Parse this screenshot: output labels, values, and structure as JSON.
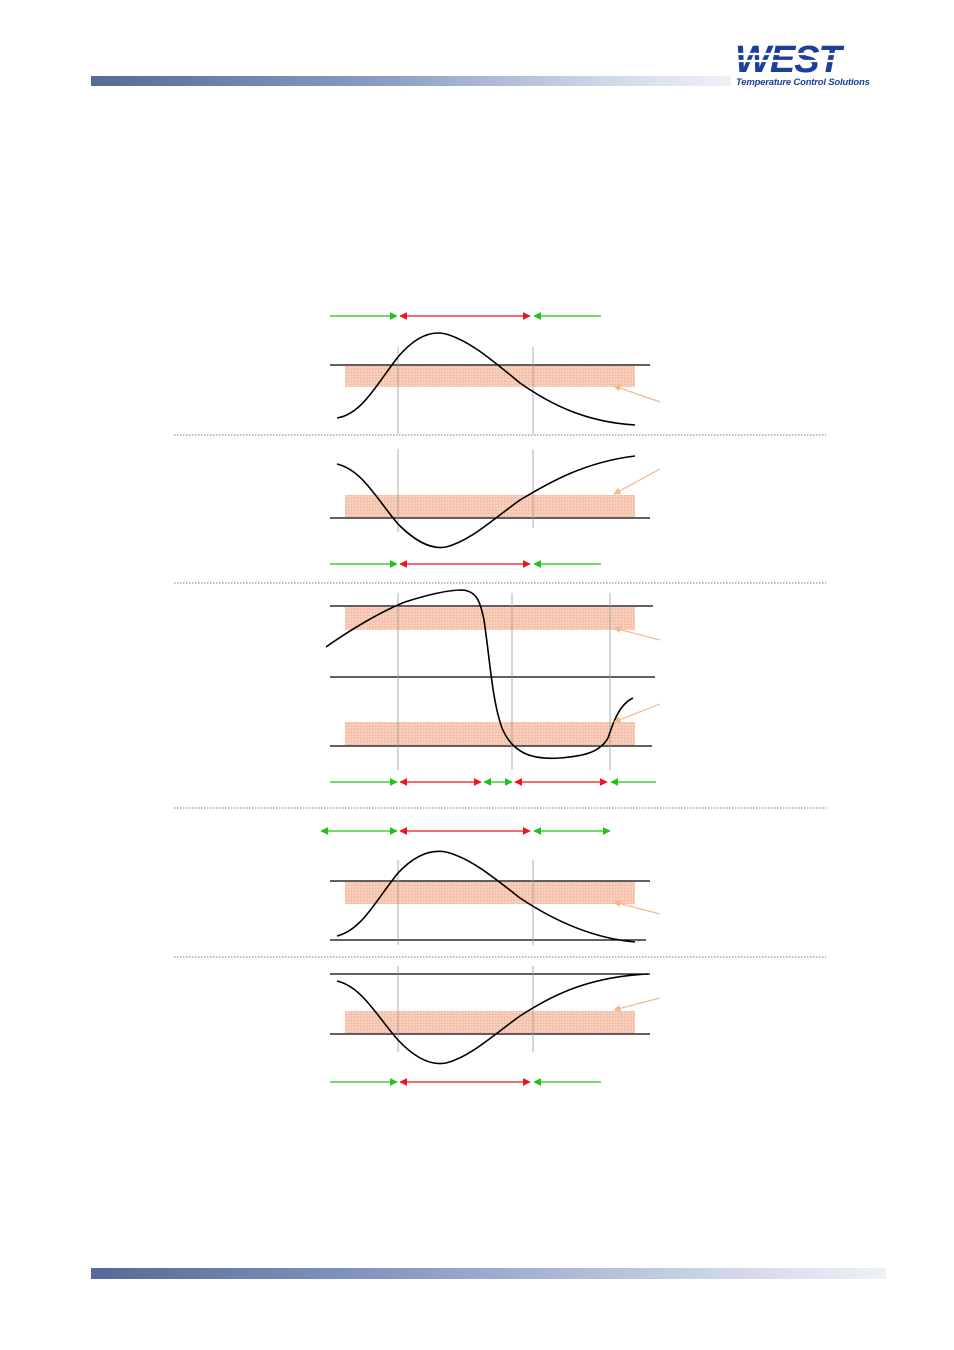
{
  "logo": {
    "wordmark": "WEST",
    "tagline": "Temperature Control Solutions",
    "color": "#1c3f9c"
  },
  "colors": {
    "header_bar_start": "#556a9a",
    "header_bar_end": "#eef1f7",
    "band_fill": "#f7c9b4",
    "arrow_active": "#e8171f",
    "arrow_inactive": "#21c21b",
    "pointer": "#f7b58e",
    "trace": "#000000"
  },
  "diagram": {
    "panel_count": 5,
    "panels": [
      {
        "id": 1,
        "trace": "rise-peak-fall",
        "band_position": "below-line",
        "indicator_sequence": [
          "inactive",
          "active",
          "inactive"
        ]
      },
      {
        "id": 2,
        "trace": "fall-dip-rise",
        "band_position": "above-line",
        "indicator_sequence": [
          "inactive",
          "active",
          "inactive"
        ]
      },
      {
        "id": 3,
        "trace": "rise-drop-recover",
        "band_position": "two-bands",
        "indicator_sequence": [
          "inactive",
          "active",
          "inactive",
          "active",
          "inactive"
        ]
      },
      {
        "id": 4,
        "trace": "rise-peak-fall",
        "band_position": "below-line",
        "indicator_sequence": [
          "inactive",
          "active",
          "inactive"
        ]
      },
      {
        "id": 5,
        "trace": "fall-dip-rise",
        "band_position": "above-line",
        "indicator_sequence": [
          "inactive",
          "active",
          "inactive"
        ]
      }
    ]
  }
}
